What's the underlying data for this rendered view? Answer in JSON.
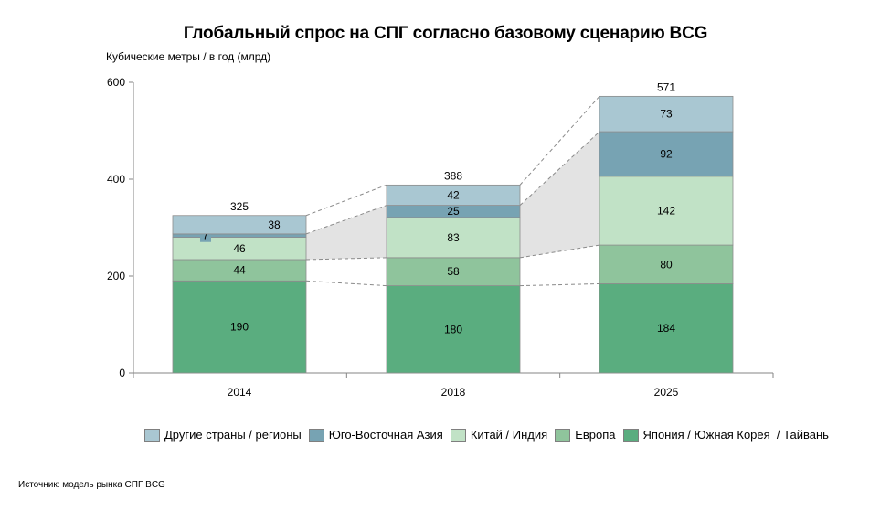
{
  "chart_data": {
    "type": "bar",
    "stacked": true,
    "title": "Глобальный спрос на СПГ согласно базовому сценарию BCG",
    "ylabel": "Кубические метры / в год (млрд)",
    "xlabel": "",
    "ylim": [
      0,
      600
    ],
    "yticks": [
      "0",
      "200",
      "400",
      "600"
    ],
    "categories": [
      "2014",
      "2018",
      "2025"
    ],
    "totals": [
      "325",
      "388",
      "571"
    ],
    "series": [
      {
        "name": "Япония / Южная Корея  / Тайвань",
        "color": "#5aad7f",
        "values": [
          190,
          180,
          184
        ]
      },
      {
        "name": "Европа",
        "color": "#8fc49c",
        "values": [
          44,
          58,
          80
        ]
      },
      {
        "name": "Китай / Индия",
        "color": "#c1e2c6",
        "values": [
          46,
          83,
          142
        ]
      },
      {
        "name": "Юго-Восточная Азия",
        "color": "#77a3b3",
        "values": [
          7,
          25,
          92
        ]
      },
      {
        "name": "Другие страны / регионы",
        "color": "#a9c7d2",
        "values": [
          38,
          42,
          73
        ]
      }
    ],
    "legend_order": [
      4,
      3,
      2,
      1,
      0
    ],
    "legend_position": "bottom",
    "grid": false,
    "connector_shading": "between Китай / Индия and Юго-Восточная Азия",
    "source": "Источник: модель рынка СПГ BCG"
  }
}
